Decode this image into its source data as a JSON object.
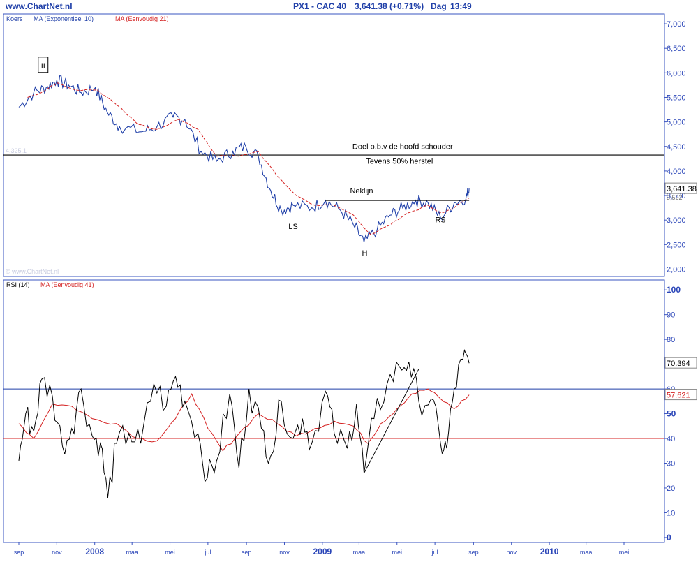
{
  "header": {
    "site": "www.ChartNet.nl",
    "instrument": "PX1 - CAC 40",
    "last": "3,641.38 (+0.71%)",
    "period": "Dag",
    "time": "13:49"
  },
  "chart_data": [
    {
      "type": "line",
      "panel": "price",
      "legend": [
        "Koers",
        "MA (Exponentieel 10)",
        "MA (Eenvoudig 21)"
      ],
      "watermark": "© www.ChartNet.nl",
      "ylim": [
        1850,
        7200
      ],
      "yticks": [
        "7,000",
        "6,500",
        "6,000",
        "5,500",
        "5,000",
        "4,500",
        "4,000",
        "3,500",
        "3,000",
        "2,500",
        "2,000"
      ],
      "ytick_values": [
        7000,
        6500,
        6000,
        5500,
        5000,
        4500,
        4000,
        3500,
        3000,
        2500,
        2000
      ],
      "last_value_label": "3,641.38",
      "second_value_label": "3,522",
      "hline_label": "4,325.1",
      "hline_value": 4325.1,
      "colors": {
        "koers": "#1f3fa8",
        "ma21": "#d42020",
        "hline": "#000000"
      },
      "series": [
        {
          "name": "Koers",
          "x": [
            "2007-09-01",
            "2007-09-25",
            "2007-10-15",
            "2007-11-01",
            "2007-11-20",
            "2007-12-10",
            "2008-01-02",
            "2008-01-21",
            "2008-02-10",
            "2008-03-17",
            "2008-04-10",
            "2008-05-06",
            "2008-05-25",
            "2008-06-20",
            "2008-07-15",
            "2008-08-10",
            "2008-08-31",
            "2008-09-20",
            "2008-10-10",
            "2008-10-27",
            "2008-11-15",
            "2008-12-15",
            "2009-01-06",
            "2009-01-30",
            "2009-02-20",
            "2009-03-09",
            "2009-03-30",
            "2009-04-20",
            "2009-05-10",
            "2009-05-31",
            "2009-06-20",
            "2009-07-10",
            "2009-08-01",
            "2009-08-20",
            "2009-08-25"
          ],
          "values": [
            5300,
            5600,
            5700,
            5850,
            5750,
            5600,
            5700,
            5200,
            4900,
            4800,
            4900,
            5100,
            5050,
            4400,
            4200,
            4400,
            4500,
            4300,
            3600,
            3200,
            3300,
            3250,
            3400,
            3200,
            2900,
            2550,
            2800,
            3100,
            3250,
            3400,
            3350,
            3050,
            3350,
            3450,
            3641
          ]
        },
        {
          "name": "MA (Eenvoudig 21)",
          "x": [
            "2007-09-15",
            "2007-10-15",
            "2007-11-01",
            "2007-12-01",
            "2008-01-05",
            "2008-02-05",
            "2008-03-10",
            "2008-04-10",
            "2008-05-15",
            "2008-06-15",
            "2008-07-15",
            "2008-08-20",
            "2008-09-20",
            "2008-10-20",
            "2008-11-20",
            "2008-12-20",
            "2009-01-20",
            "2009-02-20",
            "2009-03-20",
            "2009-04-20",
            "2009-05-20",
            "2009-06-20",
            "2009-07-10",
            "2009-08-01",
            "2009-08-25"
          ],
          "values": [
            5500,
            5650,
            5800,
            5650,
            5650,
            5350,
            4950,
            4850,
            5050,
            4850,
            4300,
            4300,
            4400,
            3900,
            3500,
            3300,
            3300,
            3100,
            2700,
            2900,
            3150,
            3300,
            3150,
            3250,
            3450
          ]
        }
      ],
      "annotations": [
        {
          "text": "II",
          "x": "2007-10-10",
          "y": 6150,
          "boxed": true
        },
        {
          "text": "Doel o.b.v de hoofd schouder",
          "x": "2009-05-10",
          "y": 4450
        },
        {
          "text": "Tevens 50% herstel",
          "x": "2009-05-05",
          "y": 4150
        },
        {
          "text": "Neklijn",
          "x": "2009-03-05",
          "y": 3540
        },
        {
          "text": "LS",
          "x": "2008-11-15",
          "y": 2820
        },
        {
          "text": "H",
          "x": "2009-03-10",
          "y": 2280
        },
        {
          "text": "RS",
          "x": "2009-07-10",
          "y": 2950
        }
      ],
      "neckline": {
        "x": [
          "2009-01-06",
          "2009-08-25"
        ],
        "values": [
          3400,
          3400
        ]
      }
    },
    {
      "type": "line",
      "panel": "rsi",
      "legend": [
        "RSI (14)",
        "MA (Eenvoudig 41)"
      ],
      "ylim": [
        -2,
        104
      ],
      "yticks": [
        "100",
        "90",
        "80",
        "70",
        "60",
        "50",
        "40",
        "30",
        "20",
        "10",
        "0"
      ],
      "ytick_values": [
        100,
        90,
        80,
        70,
        60,
        50,
        40,
        30,
        20,
        10,
        0
      ],
      "last_value_label": "70.394",
      "ma_value_label": "57.621",
      "hlines": [
        60,
        40
      ],
      "colors": {
        "rsi": "#000000",
        "ma41": "#d42020",
        "hline_upper": "#1f3fa8",
        "hline_lower": "#d42020"
      },
      "series": [
        {
          "name": "RSI (14)",
          "x": [
            "2007-09-01",
            "2007-09-12",
            "2007-09-25",
            "2007-10-08",
            "2007-10-25",
            "2007-11-10",
            "2007-11-25",
            "2007-12-10",
            "2007-12-28",
            "2008-01-10",
            "2008-01-22",
            "2008-02-05",
            "2008-02-25",
            "2008-03-15",
            "2008-04-05",
            "2008-04-25",
            "2008-05-10",
            "2008-05-25",
            "2008-06-15",
            "2008-06-30",
            "2008-07-15",
            "2008-08-05",
            "2008-08-20",
            "2008-09-05",
            "2008-09-25",
            "2008-10-10",
            "2008-10-27",
            "2008-11-15",
            "2008-11-30",
            "2008-12-15",
            "2009-01-06",
            "2009-01-20",
            "2009-02-10",
            "2009-02-25",
            "2009-03-09",
            "2009-03-25",
            "2009-04-15",
            "2009-05-05",
            "2009-05-20",
            "2009-06-05",
            "2009-06-25",
            "2009-07-10",
            "2009-07-20",
            "2009-08-01",
            "2009-08-15",
            "2009-08-25"
          ],
          "values": [
            31,
            50,
            43,
            64,
            57,
            37,
            44,
            60,
            41,
            38,
            16,
            38,
            42,
            38,
            62,
            53,
            65,
            55,
            42,
            24,
            31,
            58,
            28,
            60,
            44,
            33,
            55,
            40,
            48,
            38,
            59,
            42,
            36,
            54,
            26,
            48,
            62,
            69,
            71,
            55,
            56,
            38,
            36,
            60,
            72,
            70.4
          ]
        },
        {
          "name": "MA (Eenvoudig 41)",
          "x": [
            "2007-09-01",
            "2007-09-25",
            "2007-10-25",
            "2007-11-25",
            "2007-12-28",
            "2008-02-05",
            "2008-03-10",
            "2008-04-10",
            "2008-05-10",
            "2008-06-05",
            "2008-07-01",
            "2008-07-25",
            "2008-08-20",
            "2008-09-20",
            "2008-10-20",
            "2008-11-20",
            "2008-12-20",
            "2009-01-20",
            "2009-02-20",
            "2009-03-15",
            "2009-04-05",
            "2009-05-01",
            "2009-05-25",
            "2009-06-20",
            "2009-07-10",
            "2009-08-01",
            "2009-08-25"
          ],
          "values": [
            46,
            40,
            54,
            53,
            48,
            46,
            40,
            39,
            48,
            58,
            44,
            35,
            42,
            50,
            46,
            41,
            44,
            47,
            45,
            38,
            46,
            52,
            58,
            60,
            56,
            52,
            57.6
          ]
        }
      ],
      "trendline": {
        "x": [
          "2009-03-09",
          "2009-06-05"
        ],
        "values": [
          26,
          68
        ]
      }
    }
  ],
  "xaxis": {
    "labels": [
      {
        "date": "2007-09-01",
        "label": "sep",
        "bold": false
      },
      {
        "date": "2007-11-01",
        "label": "nov",
        "bold": false
      },
      {
        "date": "2008-01-01",
        "label": "2008",
        "bold": true
      },
      {
        "date": "2008-03-01",
        "label": "maa",
        "bold": false
      },
      {
        "date": "2008-05-01",
        "label": "mei",
        "bold": false
      },
      {
        "date": "2008-07-01",
        "label": "jul",
        "bold": false
      },
      {
        "date": "2008-09-01",
        "label": "sep",
        "bold": false
      },
      {
        "date": "2008-11-01",
        "label": "nov",
        "bold": false
      },
      {
        "date": "2009-01-01",
        "label": "2009",
        "bold": true
      },
      {
        "date": "2009-03-01",
        "label": "maa",
        "bold": false
      },
      {
        "date": "2009-05-01",
        "label": "mei",
        "bold": false
      },
      {
        "date": "2009-07-01",
        "label": "jul",
        "bold": false
      },
      {
        "date": "2009-09-01",
        "label": "sep",
        "bold": false
      },
      {
        "date": "2009-11-01",
        "label": "nov",
        "bold": false
      },
      {
        "date": "2010-01-01",
        "label": "2010",
        "bold": true
      },
      {
        "date": "2010-03-01",
        "label": "maa",
        "bold": false
      },
      {
        "date": "2010-05-01",
        "label": "mei",
        "bold": false
      }
    ]
  }
}
